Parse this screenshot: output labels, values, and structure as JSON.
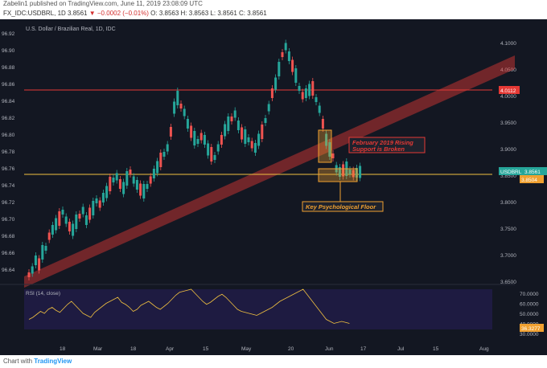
{
  "header": {
    "published": "Zabelin1 published on TradingView.com, June 11, 2019 23:08:09 UTC",
    "symbol": "FX_IDC:USDBRL, 1D",
    "price": "3.8561",
    "change": "▼ −0.0002 (−0.01%)",
    "ohlc": "O: 3.8563  H: 3.8563  L: 3.8561  C: 3.8561"
  },
  "chart": {
    "title": "U.S. Dollar / Brazilian Real, 1D, IDC",
    "left_ticks": [
      "96.92",
      "96.90",
      "96.88",
      "96.86",
      "96.84",
      "96.82",
      "96.80",
      "96.78",
      "96.76",
      "96.74",
      "96.72",
      "96.70",
      "96.68",
      "96.66",
      "96.64"
    ],
    "right_ticks": [
      "4.1000",
      "4.0500",
      "4.0000",
      "3.9500",
      "3.9000",
      "3.8500",
      "3.8000",
      "3.7500",
      "3.7000",
      "3.6500"
    ],
    "x_ticks": [
      "18",
      "Mar",
      "18",
      "Apr",
      "15",
      "May",
      "20",
      "Jun",
      "17",
      "Jul",
      "15",
      "Aug"
    ],
    "red_line_label": "4.0112",
    "current_label_symbol": "USDBRL",
    "current_label_value": "3.8561",
    "floor_label_value": "3.8504",
    "annotation_rising": "February 2019 Rising Support is Broken",
    "annotation_floor": "Key Psychological Floor",
    "colors": {
      "up": "#26a69a",
      "down": "#ef5350",
      "gold": "#f0c040",
      "redline": "#e53935",
      "rsi": "#f0c040",
      "background": "#131722"
    }
  },
  "rsi": {
    "label": "RSI (14, close)",
    "ticks": [
      "70.0000",
      "60.0000",
      "50.0000",
      "40.0000",
      "30.0000"
    ],
    "current": "36.3277"
  },
  "footer": {
    "chart_by": "Chart with",
    "brand": "TradingView"
  },
  "chart_data": {
    "type": "candlestick",
    "ylim": [
      3.635,
      4.13
    ],
    "series": [
      {
        "name": "RSI (14, close)",
        "values": [
          40,
          42,
          45,
          48,
          46,
          50,
          52,
          49,
          47,
          51,
          55,
          58,
          54,
          50,
          46,
          44,
          42,
          47,
          50,
          53,
          56,
          58,
          60,
          62,
          57,
          55,
          52,
          48,
          50,
          54,
          56,
          58,
          55,
          52,
          50,
          53,
          56,
          60,
          64,
          67,
          68,
          69,
          70,
          66,
          62,
          58,
          55,
          57,
          60,
          63,
          65,
          62,
          58,
          54,
          50,
          48,
          47,
          46,
          45,
          44,
          46,
          48,
          50,
          52,
          55,
          58,
          60,
          62,
          64,
          66,
          68,
          70,
          65,
          60,
          55,
          50,
          45,
          40,
          38,
          36,
          37,
          38,
          37,
          36
        ]
      }
    ]
  }
}
